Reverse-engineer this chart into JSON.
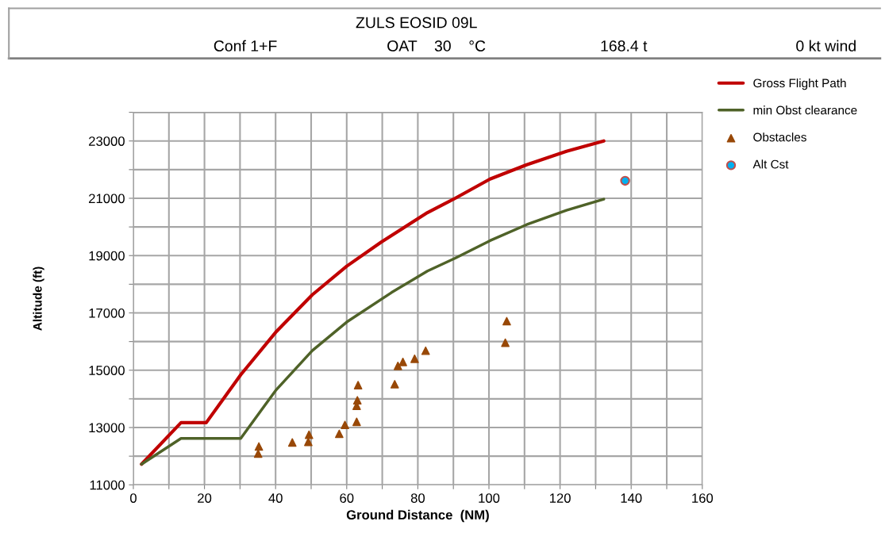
{
  "chart_data": {
    "type": "line",
    "title": "ZULS EOSID 09L",
    "annotations": [
      "Conf 1+F",
      "OAT    30    °C",
      "168.4 t",
      "0 kt wind"
    ],
    "xlabel": "Ground Distance  (NM)",
    "ylabel": "Altitude (ft)",
    "xlim": [
      0,
      160
    ],
    "xticks": [
      0,
      {
        "value": 10,
        "label": null
      },
      20,
      {
        "value": 30,
        "label": null
      },
      40,
      {
        "value": 50,
        "label": null
      },
      60,
      {
        "value": 70,
        "label": null
      },
      80,
      {
        "value": 90,
        "label": null
      },
      100,
      {
        "value": 110,
        "label": null
      },
      120,
      {
        "value": 130,
        "label": null
      },
      140,
      {
        "value": 150,
        "label": null
      },
      160
    ],
    "ylim": [
      11000,
      24000
    ],
    "yticks": [
      11000,
      {
        "value": 12000,
        "label": null
      },
      13000,
      {
        "value": 14000,
        "label": null
      },
      15000,
      {
        "value": 16000,
        "label": null
      },
      17000,
      {
        "value": 18000,
        "label": null
      },
      19000,
      {
        "value": 20000,
        "label": null
      },
      21000,
      {
        "value": 22000,
        "label": null
      },
      23000,
      {
        "value": 24000,
        "label": null
      }
    ],
    "grid": true,
    "legend": "right",
    "series": [
      {
        "name": "Gross Flight Path",
        "color": "#c00000",
        "marker": "none",
        "x": [
          2.3,
          13.4,
          20.5,
          30.2,
          40,
          50.3,
          60,
          69.7,
          82.7,
          90.5,
          100.3,
          110.6,
          121.8,
          132.3
        ],
        "values": [
          11720,
          13170,
          13170,
          14840,
          16320,
          17630,
          18630,
          19470,
          20500,
          21000,
          21670,
          22170,
          22640,
          23000
        ]
      },
      {
        "name": "min Obst clearance",
        "color": "#4f6228",
        "marker": "none",
        "x": [
          2.3,
          13.4,
          30.2,
          40,
          50.3,
          60,
          72.6,
          82.7,
          90.5,
          100.3,
          110.6,
          121.8,
          132.3
        ],
        "values": [
          11720,
          12620,
          12620,
          14290,
          15680,
          16680,
          17710,
          18460,
          18910,
          19520,
          20080,
          20580,
          20970
        ]
      },
      {
        "name": "Obstacles",
        "type": "scatter",
        "color": "#984807",
        "marker": "triangle",
        "x": [
          35.1,
          35.3,
          44.7,
          49.2,
          49.4,
          57.9,
          59.5,
          62.8,
          62.8,
          63,
          63.2,
          73.5,
          74.4,
          75.8,
          79.1,
          82.2,
          105,
          104.6
        ],
        "values": [
          12090,
          12340,
          12480,
          12500,
          12750,
          12780,
          13090,
          13200,
          13760,
          13950,
          14480,
          14510,
          15150,
          15290,
          15400,
          15680,
          16710,
          15960
        ]
      },
      {
        "name": "Alt Cst",
        "type": "scatter",
        "color": "#00b0f0",
        "marker": "circle",
        "x": [
          138.3
        ],
        "values": [
          21610
        ]
      }
    ]
  }
}
